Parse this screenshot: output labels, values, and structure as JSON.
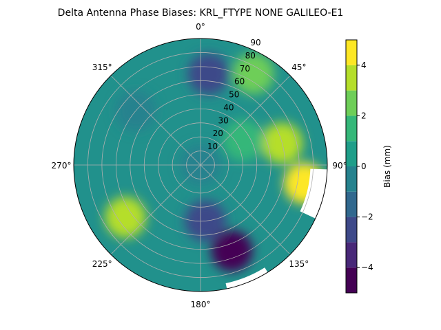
{
  "chart_data": {
    "type": "heatmap",
    "projection": "polar",
    "title": "Delta Antenna Phase Biases: KRL_FTYPE       NONE GALILEO-E1",
    "angle_direction": "clockwise",
    "angle_zero": "top",
    "angle_ticks": [
      "0°",
      "45°",
      "90°",
      "135°",
      "180°",
      "225°",
      "270°",
      "315°"
    ],
    "radial_ticks": [
      "10",
      "20",
      "30",
      "40",
      "50",
      "60",
      "70",
      "80",
      "90"
    ],
    "radial_range": [
      0,
      90
    ],
    "grid": true,
    "colorbar": {
      "label": "Bias (mm)",
      "colormap": "viridis",
      "range": [
        -5,
        5
      ],
      "ticks": [
        "4",
        "2",
        "0",
        "−2",
        "−4"
      ],
      "levels": [
        -5,
        -4,
        -3,
        -2,
        -1,
        0,
        1,
        2,
        3,
        4,
        5
      ]
    },
    "features": [
      {
        "azimuth_deg": 100,
        "zenith_deg": 75,
        "bias_mm": 4.5
      },
      {
        "azimuth_deg": 75,
        "zenith_deg": 60,
        "bias_mm": 3.5
      },
      {
        "azimuth_deg": 30,
        "zenith_deg": 75,
        "bias_mm": 2.5
      },
      {
        "azimuth_deg": 5,
        "zenith_deg": 65,
        "bias_mm": -2.5
      },
      {
        "azimuth_deg": 160,
        "zenith_deg": 65,
        "bias_mm": -5.0
      },
      {
        "azimuth_deg": 175,
        "zenith_deg": 40,
        "bias_mm": -2.5
      },
      {
        "azimuth_deg": 235,
        "zenith_deg": 65,
        "bias_mm": 3.0
      },
      {
        "azimuth_deg": 310,
        "zenith_deg": 60,
        "bias_mm": -1.0
      },
      {
        "azimuth_deg": 60,
        "zenith_deg": 35,
        "bias_mm": 1.0
      },
      {
        "azimuth_deg": 0,
        "zenith_deg": 0,
        "bias_mm": -0.5
      }
    ]
  }
}
